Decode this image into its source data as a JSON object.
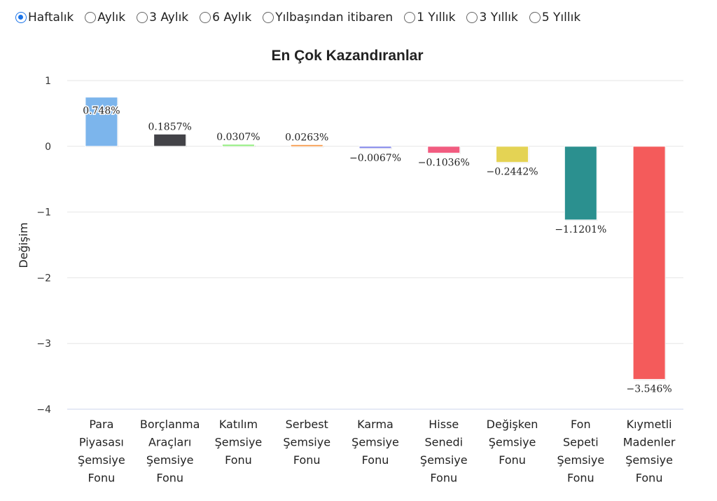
{
  "period_options": [
    {
      "label": "Haftalık",
      "checked": true
    },
    {
      "label": "Aylık",
      "checked": false
    },
    {
      "label": "3 Aylık",
      "checked": false
    },
    {
      "label": "6 Aylık",
      "checked": false
    },
    {
      "label": "Yılbaşından itibaren",
      "checked": false
    },
    {
      "label": "1 Yıllık",
      "checked": false
    },
    {
      "label": "3 Yıllık",
      "checked": false
    },
    {
      "label": "5 Yıllık",
      "checked": false
    }
  ],
  "chart_data": {
    "type": "bar",
    "title": "En Çok Kazandıranlar",
    "ylabel": "Değişim",
    "xlabel": "",
    "ylim": [
      -4,
      1
    ],
    "yticks": [
      "1",
      "0",
      "−1",
      "−2",
      "−3",
      "−4"
    ],
    "ytick_values": [
      1,
      0,
      -1,
      -2,
      -3,
      -4
    ],
    "grid": true,
    "categories": [
      [
        "Para",
        "Piyasası",
        "Şemsiye",
        "Fonu"
      ],
      [
        "Borçlanma",
        "Araçları",
        "Şemsiye",
        "Fonu"
      ],
      [
        "Katılım",
        "Şemsiye",
        "Fonu"
      ],
      [
        "Serbest",
        "Şemsiye",
        "Fonu"
      ],
      [
        "Karma",
        "Şemsiye",
        "Fonu"
      ],
      [
        "Hisse",
        "Senedi",
        "Şemsiye",
        "Fonu"
      ],
      [
        "Değişken",
        "Şemsiye",
        "Fonu"
      ],
      [
        "Fon",
        "Sepeti",
        "Şemsiye",
        "Fonu"
      ],
      [
        "Kıymetli",
        "Madenler",
        "Şemsiye",
        "Fonu"
      ]
    ],
    "values": [
      0.748,
      0.1857,
      0.0307,
      0.0263,
      -0.0067,
      -0.1036,
      -0.2442,
      -1.1201,
      -3.546
    ],
    "data_labels": [
      "0.748%",
      "0.1857%",
      "0.0307%",
      "0.0263%",
      "−0.0067%",
      "−0.1036%",
      "−0.2442%",
      "−1.1201%",
      "−3.546%"
    ],
    "colors": [
      "#7cb5ec",
      "#434348",
      "#90ed7d",
      "#f7a35c",
      "#8085e9",
      "#f15c80",
      "#e4d354",
      "#2b908f",
      "#f45b5b"
    ]
  }
}
